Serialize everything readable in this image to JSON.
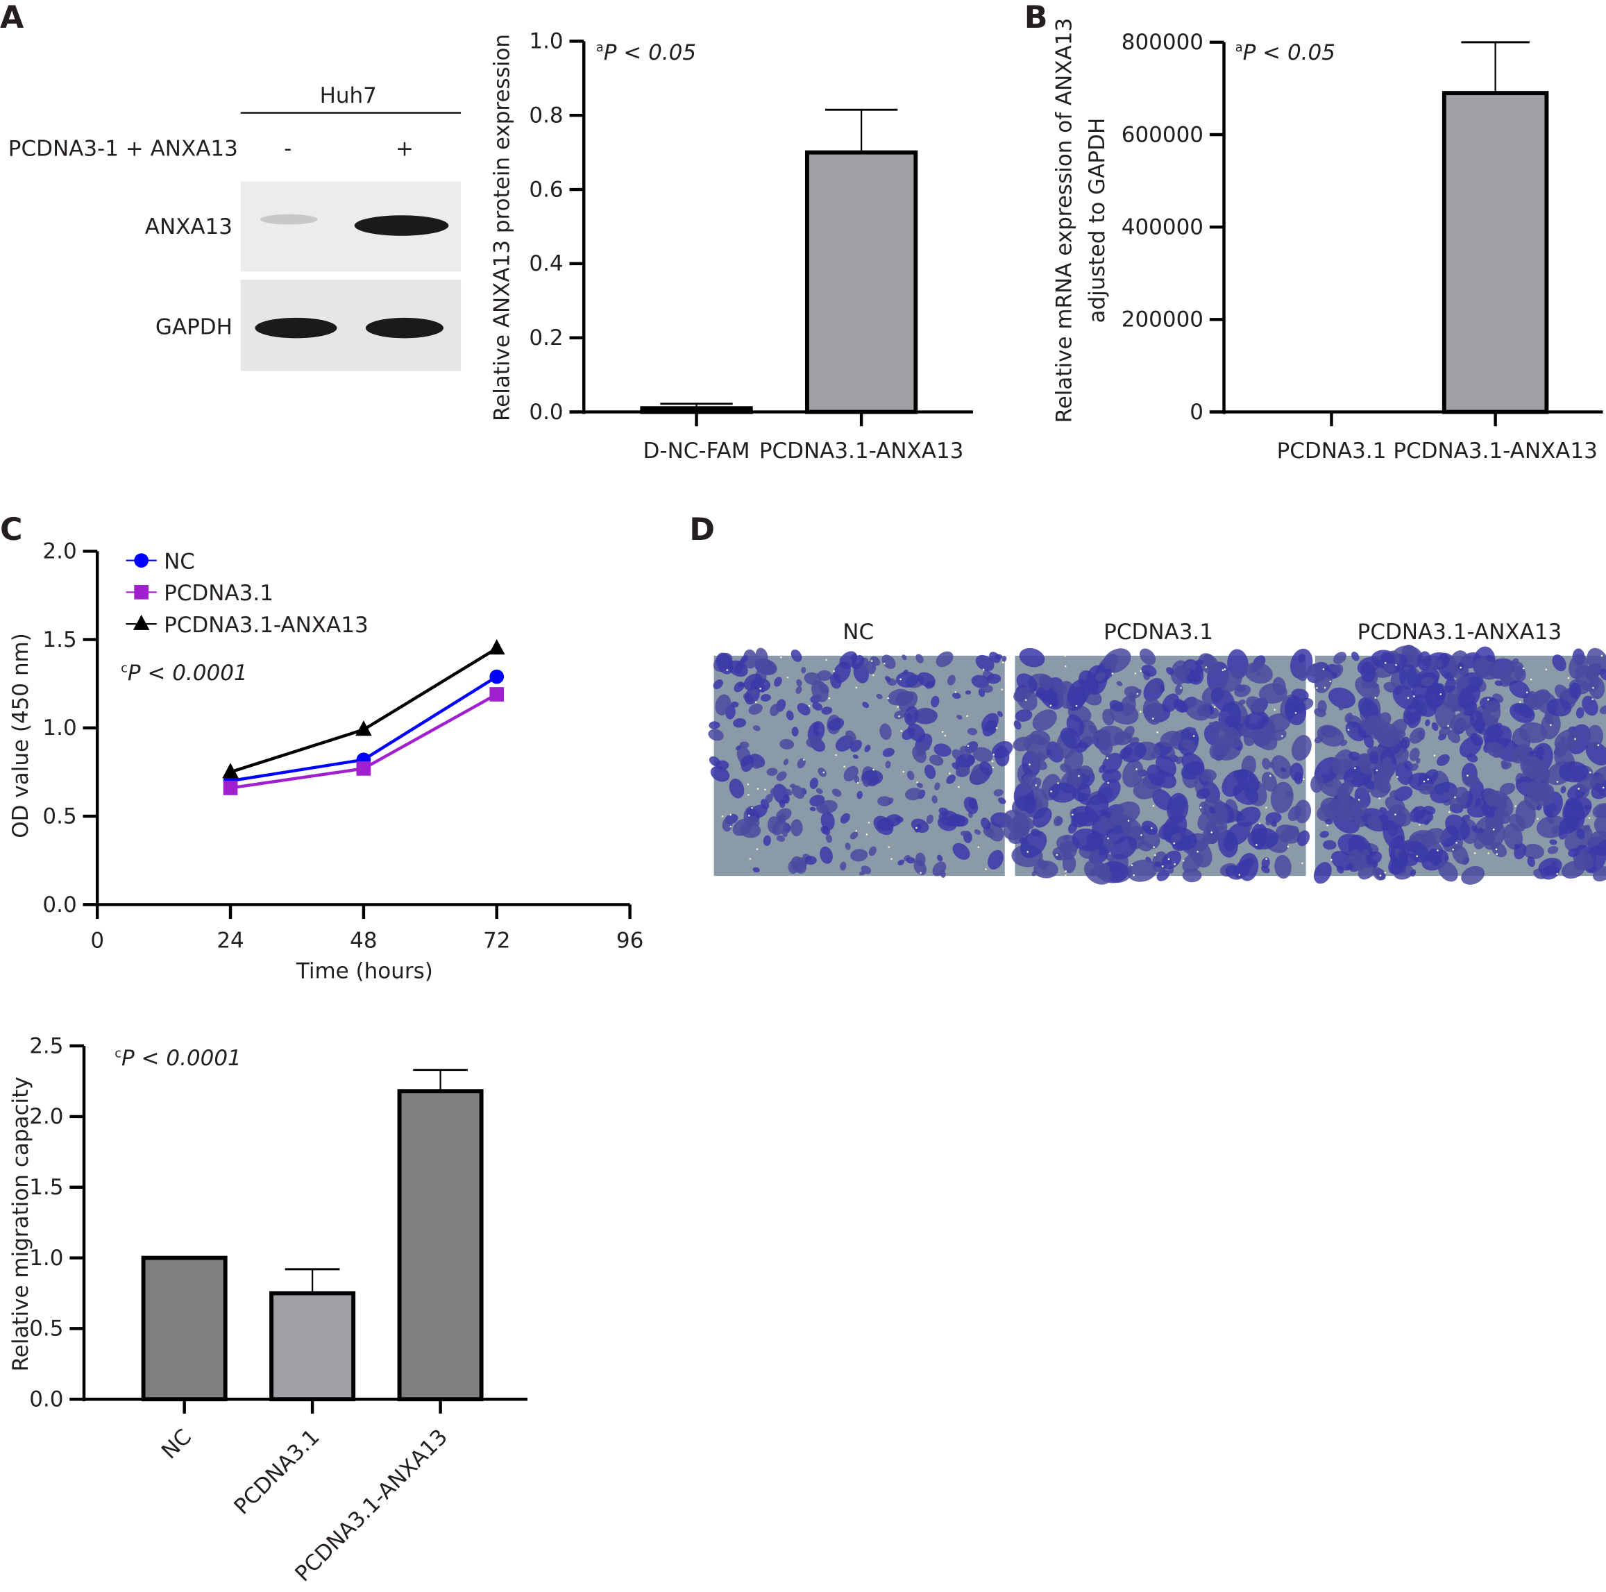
{
  "panels": {
    "a": "A",
    "b": "B",
    "c": "C",
    "d": "D"
  },
  "blot": {
    "cell_line": "Huh7",
    "treatment": "PCDNA3-1 + ANXA13",
    "minus": "-",
    "plus": "+",
    "rows": [
      "ANXA13",
      "GAPDH"
    ]
  },
  "chart_data": [
    {
      "type": "bar",
      "id": "A",
      "categories": [
        "D-NC-FAM",
        "PCDNA3.1-ANXA13"
      ],
      "values": [
        0.01,
        0.7
      ],
      "errors": [
        0.022,
        0.815
      ],
      "ylabel": "Relative ANXA13 protein expression",
      "ylim": [
        0,
        1.0
      ],
      "yticks": [
        "0.0",
        "0.2",
        "0.4",
        "0.6",
        "0.8",
        "1.0"
      ],
      "annotation": {
        "sup": "a",
        "text": "P < 0.05"
      },
      "colors": [
        "#a0a0a4",
        "#a0a0a4"
      ]
    },
    {
      "type": "bar",
      "id": "B",
      "categories": [
        "PCDNA3.1",
        "PCDNA3.1-ANXA13"
      ],
      "values": [
        0,
        690000
      ],
      "errors": [
        0,
        800000
      ],
      "ylabel": [
        "Relative mRNA expression of ANXA13",
        "adjusted to GAPDH"
      ],
      "ylim": [
        0,
        800000
      ],
      "yticks": [
        "0",
        "200000",
        "400000",
        "600000",
        "800000"
      ],
      "annotation": {
        "sup": "a",
        "text": "P < 0.05"
      },
      "colors": [
        "#a0a0a4",
        "#a0a0a4"
      ]
    },
    {
      "type": "line",
      "id": "C",
      "x": [
        24,
        48,
        72
      ],
      "xlabel": "Time (hours)",
      "ylabel": "OD value (450 nm)",
      "xlim": [
        0,
        96
      ],
      "ylim": [
        0,
        2.0
      ],
      "xticks": [
        "0",
        "24",
        "48",
        "72",
        "96"
      ],
      "yticks": [
        "0.0",
        "0.5",
        "1.0",
        "1.5",
        "2.0"
      ],
      "series": [
        {
          "name": "NC",
          "values": [
            0.7,
            0.82,
            1.29
          ],
          "color": "#0000ff",
          "marker": "circle"
        },
        {
          "name": "PCDNA3.1",
          "values": [
            0.66,
            0.77,
            1.19
          ],
          "color": "#a020d0",
          "marker": "square"
        },
        {
          "name": "PCDNA3.1-ANXA13",
          "values": [
            0.75,
            0.99,
            1.45
          ],
          "color": "#000000",
          "marker": "triangle"
        }
      ],
      "legend": "top-left",
      "annotation": {
        "sup": "c",
        "text": "P < 0.0001"
      }
    },
    {
      "type": "bar",
      "id": "C2",
      "categories": [
        "NC",
        "PCDNA3.1",
        "PCDNA3.1-ANXA13"
      ],
      "values": [
        1.0,
        0.75,
        2.18
      ],
      "errors": [
        null,
        0.92,
        2.33
      ],
      "ylabel": "Relative migration capacity",
      "ylim": [
        0,
        2.5
      ],
      "yticks": [
        "0.0",
        "0.5",
        "1.0",
        "1.5",
        "2.0",
        "2.5"
      ],
      "annotation": {
        "sup": "c",
        "text": "P < 0.0001"
      },
      "colors": [
        "#808080",
        "#a0a0a4",
        "#808080"
      ]
    }
  ],
  "micrographs": [
    "NC",
    "PCDNA3.1",
    "PCDNA3.1-ANXA13"
  ]
}
